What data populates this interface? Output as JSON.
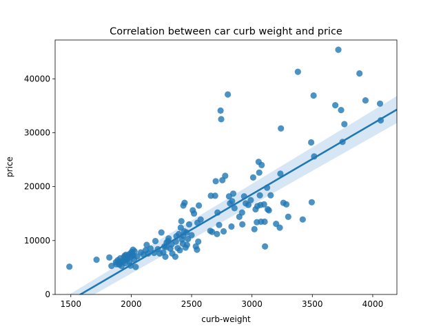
{
  "chart_data": {
    "type": "scatter",
    "title": "Correlation between car curb weight and price",
    "xlabel": "curb-weight",
    "ylabel": "price",
    "xlim": [
      1370,
      4200
    ],
    "ylim": [
      0,
      47200
    ],
    "xticks": [
      1500,
      2000,
      2500,
      3000,
      3500,
      4000
    ],
    "yticks": [
      0,
      10000,
      20000,
      30000,
      40000
    ],
    "grid": false,
    "colors": {
      "points": "#1f77b4",
      "line": "#1f77b4",
      "band": "#c6dbef"
    },
    "regression": {
      "x": [
        1488,
        4200
      ],
      "y": [
        -1200,
        34300
      ],
      "ci_lower": [
        -2600,
        31800
      ],
      "ci_upper": [
        0,
        36800
      ]
    },
    "points": [
      [
        1488,
        5150
      ],
      [
        1713,
        6450
      ],
      [
        1819,
        6850
      ],
      [
        1837,
        5300
      ],
      [
        1874,
        6000
      ],
      [
        1876,
        5600
      ],
      [
        1889,
        6350
      ],
      [
        1900,
        5550
      ],
      [
        1905,
        6100
      ],
      [
        1909,
        6700
      ],
      [
        1918,
        5900
      ],
      [
        1920,
        5300
      ],
      [
        1938,
        6200
      ],
      [
        1940,
        6900
      ],
      [
        1945,
        7150
      ],
      [
        1950,
        5800
      ],
      [
        1951,
        6650
      ],
      [
        1956,
        7350
      ],
      [
        1967,
        6500
      ],
      [
        1971,
        6800
      ],
      [
        1980,
        7300
      ],
      [
        1985,
        6100
      ],
      [
        1989,
        7550
      ],
      [
        1995,
        5350
      ],
      [
        2000,
        7000
      ],
      [
        2004,
        7900
      ],
      [
        2008,
        7600
      ],
      [
        2015,
        8300
      ],
      [
        2017,
        7200
      ],
      [
        2024,
        6500
      ],
      [
        2028,
        8000
      ],
      [
        2037,
        5100
      ],
      [
        2050,
        7050
      ],
      [
        2080,
        7800
      ],
      [
        2102,
        7400
      ],
      [
        2120,
        8200
      ],
      [
        2128,
        9200
      ],
      [
        2140,
        7600
      ],
      [
        2160,
        8500
      ],
      [
        2190,
        7700
      ],
      [
        2200,
        9900
      ],
      [
        2220,
        8400
      ],
      [
        2236,
        7600
      ],
      [
        2250,
        11500
      ],
      [
        2265,
        7800
      ],
      [
        2275,
        8900
      ],
      [
        2283,
        7000
      ],
      [
        2290,
        8800
      ],
      [
        2293,
        9600
      ],
      [
        2304,
        9900
      ],
      [
        2310,
        10400
      ],
      [
        2324,
        8500
      ],
      [
        2335,
        9300
      ],
      [
        2340,
        7600
      ],
      [
        2365,
        7000
      ],
      [
        2370,
        9800
      ],
      [
        2375,
        10800
      ],
      [
        2385,
        8600
      ],
      [
        2395,
        11200
      ],
      [
        2403,
        8200
      ],
      [
        2410,
        12400
      ],
      [
        2415,
        13600
      ],
      [
        2420,
        10200
      ],
      [
        2428,
        9400
      ],
      [
        2430,
        10900
      ],
      [
        2432,
        16500
      ],
      [
        2440,
        11700
      ],
      [
        2442,
        17000
      ],
      [
        2450,
        8700
      ],
      [
        2458,
        11500
      ],
      [
        2462,
        9200
      ],
      [
        2470,
        10300
      ],
      [
        2480,
        13000
      ],
      [
        2500,
        11000
      ],
      [
        2510,
        15600
      ],
      [
        2520,
        15000
      ],
      [
        2535,
        8900
      ],
      [
        2545,
        8300
      ],
      [
        2548,
        13300
      ],
      [
        2555,
        9800
      ],
      [
        2560,
        16500
      ],
      [
        2575,
        13900
      ],
      [
        2655,
        11800
      ],
      [
        2660,
        18300
      ],
      [
        2670,
        11600
      ],
      [
        2695,
        18300
      ],
      [
        2700,
        21000
      ],
      [
        2710,
        11200
      ],
      [
        2715,
        15200
      ],
      [
        2728,
        12900
      ],
      [
        2740,
        34100
      ],
      [
        2745,
        32500
      ],
      [
        2755,
        21200
      ],
      [
        2765,
        11700
      ],
      [
        2778,
        22000
      ],
      [
        2800,
        37100
      ],
      [
        2810,
        18200
      ],
      [
        2818,
        16900
      ],
      [
        2830,
        12600
      ],
      [
        2835,
        17300
      ],
      [
        2845,
        18700
      ],
      [
        2855,
        16000
      ],
      [
        2895,
        14400
      ],
      [
        2918,
        15200
      ],
      [
        2920,
        13000
      ],
      [
        2935,
        18200
      ],
      [
        2948,
        16900
      ],
      [
        2970,
        16600
      ],
      [
        2990,
        17500
      ],
      [
        3010,
        21700
      ],
      [
        3020,
        12100
      ],
      [
        3030,
        15800
      ],
      [
        3040,
        13400
      ],
      [
        3045,
        16400
      ],
      [
        3055,
        24600
      ],
      [
        3060,
        22600
      ],
      [
        3065,
        18400
      ],
      [
        3070,
        16600
      ],
      [
        3075,
        13500
      ],
      [
        3080,
        24000
      ],
      [
        3100,
        16700
      ],
      [
        3105,
        13500
      ],
      [
        3108,
        8900
      ],
      [
        3125,
        19800
      ],
      [
        3130,
        15800
      ],
      [
        3140,
        15600
      ],
      [
        3155,
        18400
      ],
      [
        3200,
        13100
      ],
      [
        3230,
        12400
      ],
      [
        3235,
        22400
      ],
      [
        3240,
        30800
      ],
      [
        3260,
        17000
      ],
      [
        3285,
        16700
      ],
      [
        3300,
        14400
      ],
      [
        3380,
        41300
      ],
      [
        3420,
        13900
      ],
      [
        3490,
        28200
      ],
      [
        3495,
        17100
      ],
      [
        3510,
        36900
      ],
      [
        3515,
        25600
      ],
      [
        3690,
        35100
      ],
      [
        3715,
        45400
      ],
      [
        3738,
        34200
      ],
      [
        3750,
        28300
      ],
      [
        3765,
        31600
      ],
      [
        3890,
        41000
      ],
      [
        3940,
        36000
      ],
      [
        4060,
        35400
      ],
      [
        4066,
        32300
      ]
    ]
  }
}
